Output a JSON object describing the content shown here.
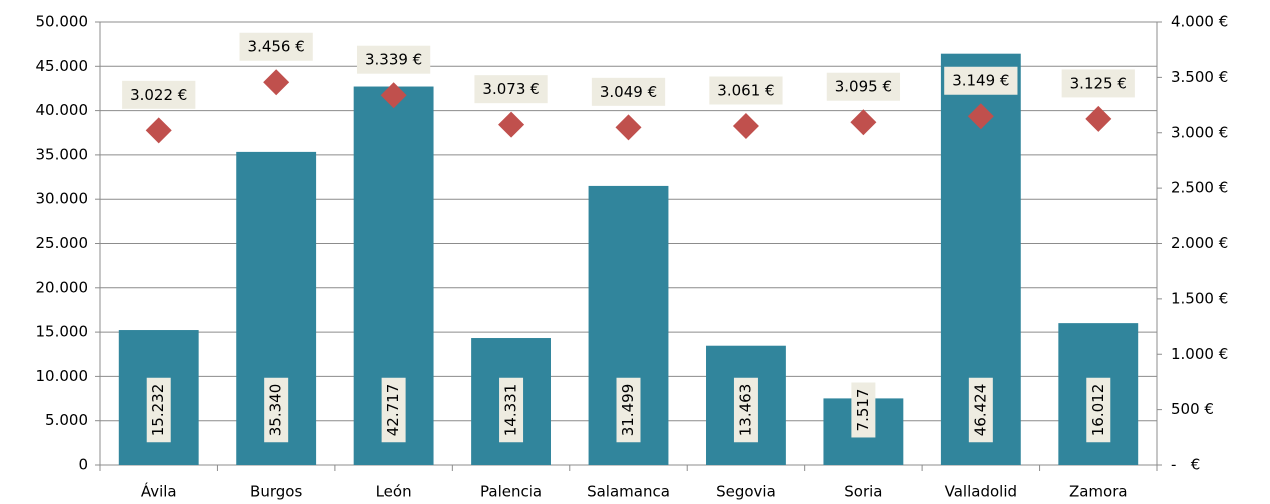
{
  "chart_data": {
    "type": "bar",
    "categories": [
      "Ávila",
      "Burgos",
      "León",
      "Palencia",
      "Salamanca",
      "Segovia",
      "Soria",
      "Valladolid",
      "Zamora"
    ],
    "series": [
      {
        "type": "bar",
        "color": "#31859c",
        "values": [
          15232,
          35340,
          42717,
          14331,
          31499,
          13463,
          7517,
          46424,
          16012
        ],
        "value_labels": [
          "15.232",
          "35.340",
          "42.717",
          "14.331",
          "31.499",
          "13.463",
          "7.517",
          "46.424",
          "16.012"
        ]
      },
      {
        "type": "scatter",
        "axis": "y2",
        "color": "#c0504d",
        "values": [
          3022,
          3456,
          3339,
          3073,
          3049,
          3061,
          3095,
          3149,
          3125
        ],
        "value_labels": [
          "3.022 €",
          "3.456 €",
          "3.339 €",
          "3.073 €",
          "3.049 €",
          "3.061 €",
          "3.095 €",
          "3.149 €",
          "3.125 €"
        ]
      }
    ],
    "ylim": [
      0,
      50000
    ],
    "yticks": [
      0,
      {
        "value": 5000,
        "label": "5.000"
      },
      {
        "value": 10000,
        "label": "10.000"
      },
      {
        "value": 15000,
        "label": "15.000"
      },
      {
        "value": 20000,
        "label": "20.000"
      },
      {
        "value": 25000,
        "label": "25.000"
      },
      {
        "value": 30000,
        "label": "30.000"
      },
      {
        "value": 35000,
        "label": "35.000"
      },
      {
        "value": 40000,
        "label": "40.000"
      },
      {
        "value": 45000,
        "label": "45.000"
      },
      {
        "value": 50000,
        "label": "50.000"
      }
    ],
    "y2lim": [
      0,
      4000
    ],
    "y2ticks": [
      {
        "value": 0,
        "label": "-   €"
      },
      {
        "value": 500,
        "label": "500 €"
      },
      {
        "value": 1000,
        "label": "1.000 €"
      },
      {
        "value": 1500,
        "label": "1.500 €"
      },
      {
        "value": 2000,
        "label": "2.000 €"
      },
      {
        "value": 2500,
        "label": "2.500 €"
      },
      {
        "value": 3000,
        "label": "3.000 €"
      },
      {
        "value": 3500,
        "label": "3.500 €"
      },
      {
        "value": 4000,
        "label": "4.000 €"
      }
    ],
    "grid": true
  }
}
